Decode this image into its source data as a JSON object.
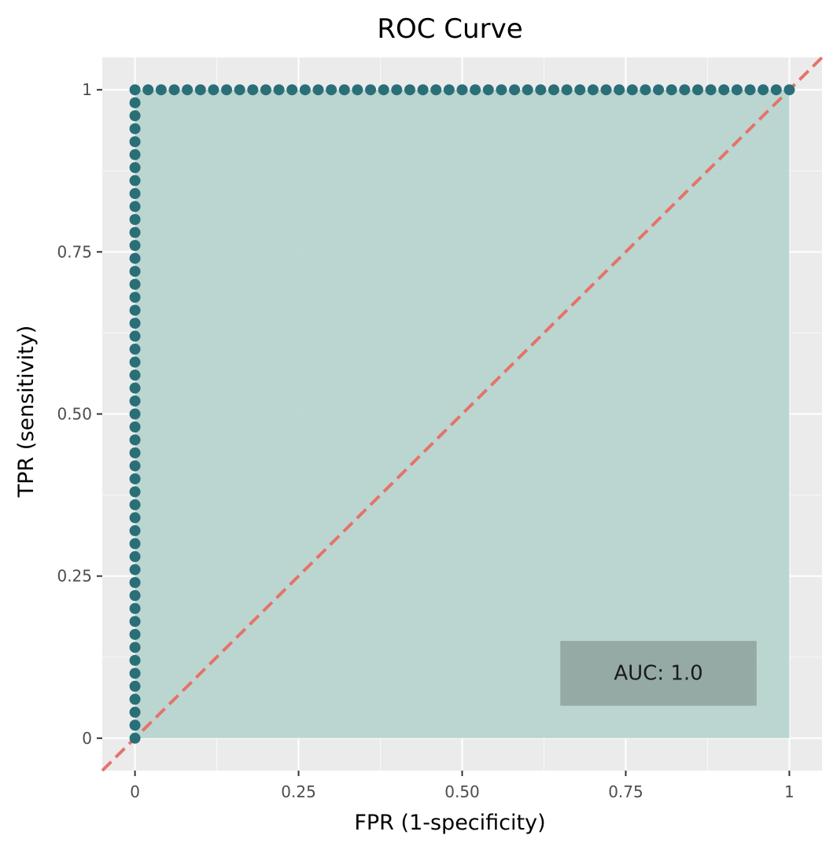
{
  "chart_data": {
    "type": "scatter",
    "title": "ROC Curve",
    "xlabel": "FPR (1-specificity)",
    "ylabel": "TPR (sensitivity)",
    "xlim": [
      -0.05,
      1.05
    ],
    "ylim": [
      -0.05,
      1.05
    ],
    "x_ticks": [
      0,
      0.25,
      0.5,
      0.75,
      1
    ],
    "x_tick_labels": [
      "0",
      "0.25",
      "0.50",
      "0.75",
      "1"
    ],
    "y_ticks": [
      0,
      0.25,
      0.5,
      0.75,
      1
    ],
    "y_tick_labels": [
      "0",
      "0.25",
      "0.50",
      "0.75",
      "1"
    ],
    "grid": true,
    "series": [
      {
        "style": "points+area",
        "point_color": "#2a6f78",
        "area_color": "#b8d5cf",
        "points": {
          "segment_1": {
            "x": 0,
            "y_from": 0,
            "y_to": 1,
            "step": 0.02
          },
          "segment_2": {
            "x_from": 0,
            "x_to": 1,
            "y": 1,
            "step": 0.02
          }
        }
      }
    ],
    "reference_line": {
      "x": [
        -0.05,
        1.05
      ],
      "y": [
        -0.05,
        1.05
      ],
      "color": "#e5736a",
      "dash": true
    },
    "annotation": {
      "text": "AUC: 1.0",
      "x_range": [
        0.65,
        0.95
      ],
      "y_range": [
        0.05,
        0.15
      ],
      "fill": "#95aaa4"
    },
    "colors": {
      "panel": "#ebebeb",
      "grid": "#ffffff"
    }
  }
}
